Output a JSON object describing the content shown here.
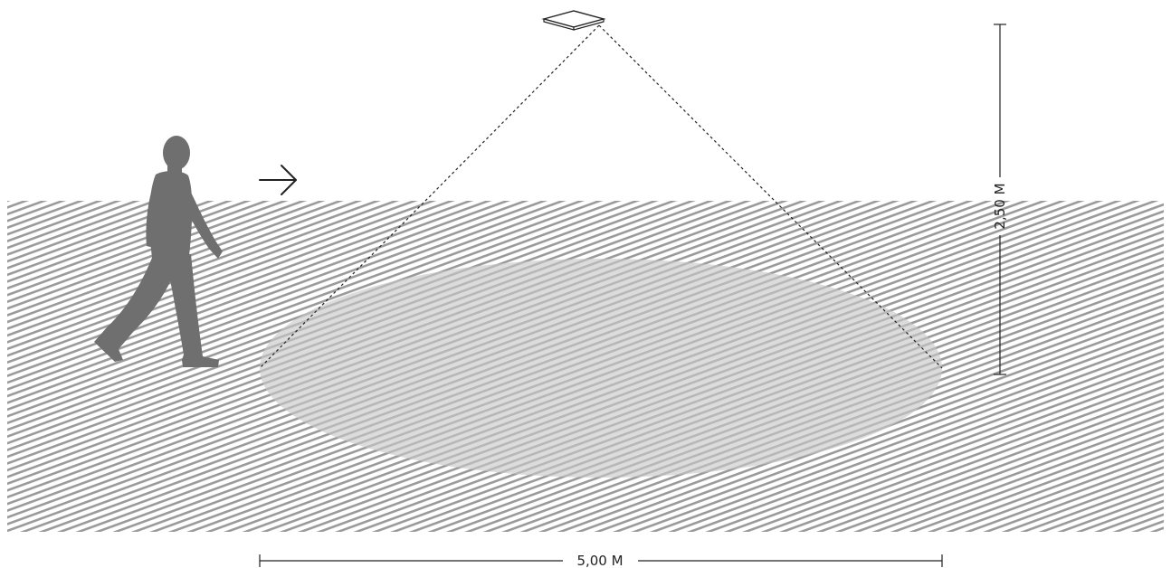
{
  "diagram": {
    "labels": {
      "width": "5,00 M",
      "height": "2,50 M"
    },
    "icons": {
      "sensor": "ceiling-sensor-icon",
      "person": "walking-person-icon",
      "direction": "right-arrow-icon"
    },
    "colors": {
      "floor_hatch": "#9a9a9a",
      "detection_zone": "#c8c8c8",
      "person": "#6f6f6f",
      "lines": "#222222",
      "background": "#ffffff"
    }
  }
}
